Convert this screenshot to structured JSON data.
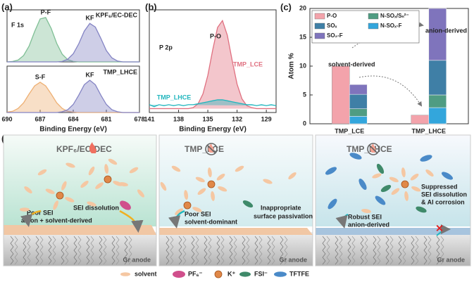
{
  "panel_labels": [
    "(a)",
    "(b)",
    "(c)"
  ],
  "chart_data": [
    {
      "type": "line",
      "annotations": [
        "F 1s",
        "KPF₆/EC-DEC"
      ],
      "fill": true,
      "x": [
        690,
        689.5,
        689,
        688.5,
        688,
        687.5,
        687,
        686.5,
        686,
        685.5,
        685,
        684.5,
        684,
        683.5,
        683,
        682.5,
        682,
        681.5,
        681,
        680.5,
        680,
        679.5,
        679,
        678.5,
        678
      ],
      "xlim": [
        690,
        678
      ],
      "ylim": [
        0,
        1.15
      ],
      "series": [
        {
          "name": "P-F",
          "color": "#7fbf95",
          "values": [
            0,
            0.01,
            0.04,
            0.14,
            0.35,
            0.67,
            0.95,
            0.98,
            0.74,
            0.41,
            0.17,
            0.05,
            0.01,
            0,
            0,
            0,
            0,
            0,
            0,
            0,
            0,
            0,
            0,
            0,
            0
          ]
        },
        {
          "name": "KF",
          "color": "#8484c4",
          "values": [
            0,
            0,
            0,
            0,
            0,
            0,
            0,
            0,
            0,
            0,
            0.01,
            0.06,
            0.18,
            0.4,
            0.68,
            0.85,
            0.77,
            0.52,
            0.25,
            0.09,
            0.02,
            0,
            0,
            0,
            0
          ]
        }
      ]
    },
    {
      "type": "line",
      "annotations": [
        "TMP_LHCE"
      ],
      "fill": true,
      "xlabel": "Binding Energy (eV)",
      "x": [
        690,
        689.5,
        689,
        688.5,
        688,
        687.5,
        687,
        686.5,
        686,
        685.5,
        685,
        684.5,
        684,
        683.5,
        683,
        682.5,
        682,
        681.5,
        681,
        680.5,
        680,
        679.5,
        679,
        678.5,
        678
      ],
      "xlim": [
        690,
        678
      ],
      "xticks": [
        690,
        687,
        684,
        681,
        678
      ],
      "ylim": [
        0,
        1.15
      ],
      "series": [
        {
          "name": "S-F",
          "color": "#eeb074",
          "values": [
            0.01,
            0.03,
            0.1,
            0.24,
            0.46,
            0.66,
            0.75,
            0.66,
            0.46,
            0.24,
            0.1,
            0.03,
            0.01,
            0,
            0,
            0,
            0,
            0,
            0,
            0,
            0,
            0,
            0,
            0,
            0
          ]
        },
        {
          "name": "KF",
          "color": "#8484c4",
          "values": [
            0,
            0,
            0,
            0,
            0,
            0,
            0,
            0,
            0,
            0,
            0.02,
            0.07,
            0.2,
            0.43,
            0.69,
            0.8,
            0.69,
            0.43,
            0.2,
            0.07,
            0.02,
            0,
            0,
            0,
            0
          ]
        }
      ]
    },
    {
      "type": "line",
      "annotations": [
        "P 2p",
        "P-O"
      ],
      "fill": true,
      "xlabel": "Binding Energy (eV)",
      "x": [
        141,
        140.5,
        140,
        139.5,
        139,
        138.5,
        138,
        137.5,
        137,
        136.5,
        136,
        135.5,
        135,
        134.5,
        134,
        133.5,
        133,
        132.5,
        132,
        131.5,
        131,
        130.5,
        130,
        129.5,
        129,
        128.5,
        128
      ],
      "xlim": [
        141,
        128
      ],
      "xticks": [
        141,
        138,
        135,
        132,
        129
      ],
      "ylim": [
        0,
        1.05
      ],
      "series": [
        {
          "name": "TMP_LCE",
          "color": "#e07080",
          "values": [
            0.04,
            0.04,
            0.04,
            0.04,
            0.04,
            0.04,
            0.04,
            0.04,
            0.04,
            0.05,
            0.09,
            0.19,
            0.38,
            0.64,
            0.87,
            0.94,
            0.79,
            0.53,
            0.29,
            0.14,
            0.07,
            0.05,
            0.04,
            0.04,
            0.04,
            0.04,
            0.04
          ]
        },
        {
          "name": "TMP_LHCE",
          "color": "#1fb5bd",
          "values": [
            0.08,
            0.06,
            0.08,
            0.07,
            0.08,
            0.07,
            0.08,
            0.07,
            0.08,
            0.08,
            0.09,
            0.1,
            0.11,
            0.12,
            0.13,
            0.13,
            0.12,
            0.11,
            0.1,
            0.09,
            0.08,
            0.08,
            0.07,
            0.08,
            0.07,
            0.08,
            0.07
          ]
        }
      ]
    },
    {
      "type": "bar",
      "ylabel": "Atom %",
      "annotations": [
        "solvent-derived",
        "anion-derived"
      ],
      "categories": [
        "TMP_LCE",
        "TMP_LHCE"
      ],
      "ylim": [
        0,
        20
      ],
      "yticks": [
        0,
        5,
        10,
        15,
        20
      ],
      "series": [
        {
          "name": "P-O",
          "color": "#f3a3ab",
          "values": [
            10,
            1.5
          ]
        },
        {
          "name": "SOₓ",
          "color": "#3f7fa6",
          "values": [
            2.5,
            6.0
          ]
        },
        {
          "name": "SO₂-F",
          "color": "#7f74bc",
          "values": [
            1.7,
            9.0
          ]
        },
        {
          "name": "N-SOₓ/Sₙ²⁻",
          "color": "#4f9c82",
          "values": [
            1.3,
            2.2
          ]
        },
        {
          "name": "N-SOₓ-F",
          "color": "#33a6dc",
          "values": [
            1.3,
            2.8
          ]
        }
      ]
    }
  ],
  "diagram": {
    "label": "(d)",
    "panels": [
      {
        "title": "KPF₆/EC-DEC",
        "sei": [
          "Poor SEI",
          "anion + solvent-derived"
        ],
        "note": [
          "SEI dissolution"
        ],
        "anode": "Gr anode"
      },
      {
        "title": "TMP_LCE",
        "sei": [
          "Poor SEI",
          "solvent-dominant"
        ],
        "note": [
          "Inappropriate",
          "surface passivation"
        ],
        "anode": "Gr anode"
      },
      {
        "title": "TMP_LHCE",
        "sei": [
          "Robust SEI",
          "anion-derived"
        ],
        "note": [
          "Suppressed",
          "SEI dissolution",
          "& Al corrosion"
        ],
        "anode": "Gr anode"
      }
    ],
    "legend": [
      "solvent",
      "PF₆⁻",
      "K⁺",
      "FSI⁻",
      "TFTFE"
    ]
  }
}
